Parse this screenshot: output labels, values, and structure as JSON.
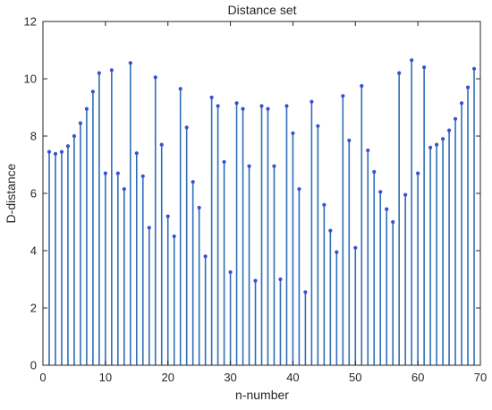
{
  "chart_data": {
    "type": "stem",
    "title": "Distance set",
    "xlabel": "n-number",
    "ylabel": "D-distance",
    "xlim": [
      0,
      70
    ],
    "ylim": [
      0,
      12
    ],
    "xticks": [
      0,
      10,
      20,
      30,
      40,
      50,
      60,
      70
    ],
    "yticks": [
      0,
      2,
      4,
      6,
      8,
      10,
      12
    ],
    "grid": false,
    "box": true,
    "colors": {
      "stem": "#2e6fb6",
      "marker": "#3b4fd0",
      "axis": "#262626"
    },
    "series": [
      {
        "x": [
          1,
          2,
          3,
          4,
          5,
          6,
          7,
          8,
          9,
          10,
          11,
          12,
          13,
          14,
          15,
          16,
          17,
          18,
          19,
          20,
          21,
          22,
          23,
          24,
          25,
          26,
          27,
          28,
          29,
          30,
          31,
          32,
          33,
          34,
          35,
          36,
          37,
          38,
          39,
          40,
          41,
          42,
          43,
          44,
          45,
          46,
          47,
          48,
          49,
          50,
          51,
          52,
          53,
          54,
          55,
          56,
          57,
          58,
          59,
          60,
          61,
          62,
          63,
          64,
          65,
          66,
          67,
          68,
          69
        ],
        "y": [
          7.45,
          7.38,
          7.45,
          7.65,
          8.0,
          8.45,
          8.95,
          9.55,
          10.2,
          6.7,
          10.3,
          6.7,
          6.15,
          10.55,
          7.4,
          6.6,
          4.8,
          10.05,
          7.7,
          5.2,
          4.5,
          9.65,
          8.3,
          6.4,
          5.5,
          3.8,
          9.35,
          9.05,
          7.1,
          3.25,
          9.15,
          8.95,
          6.95,
          2.95,
          9.05,
          8.95,
          6.95,
          3.0,
          9.05,
          8.1,
          6.15,
          2.55,
          9.2,
          8.35,
          5.6,
          4.7,
          3.95,
          9.4,
          7.85,
          4.1,
          9.75,
          7.5,
          6.75,
          6.05,
          5.45,
          5.0,
          10.2,
          5.95,
          10.65,
          6.7,
          10.4,
          7.6,
          7.7,
          7.9,
          8.2,
          8.6,
          9.15,
          9.7,
          10.35
        ]
      }
    ]
  }
}
